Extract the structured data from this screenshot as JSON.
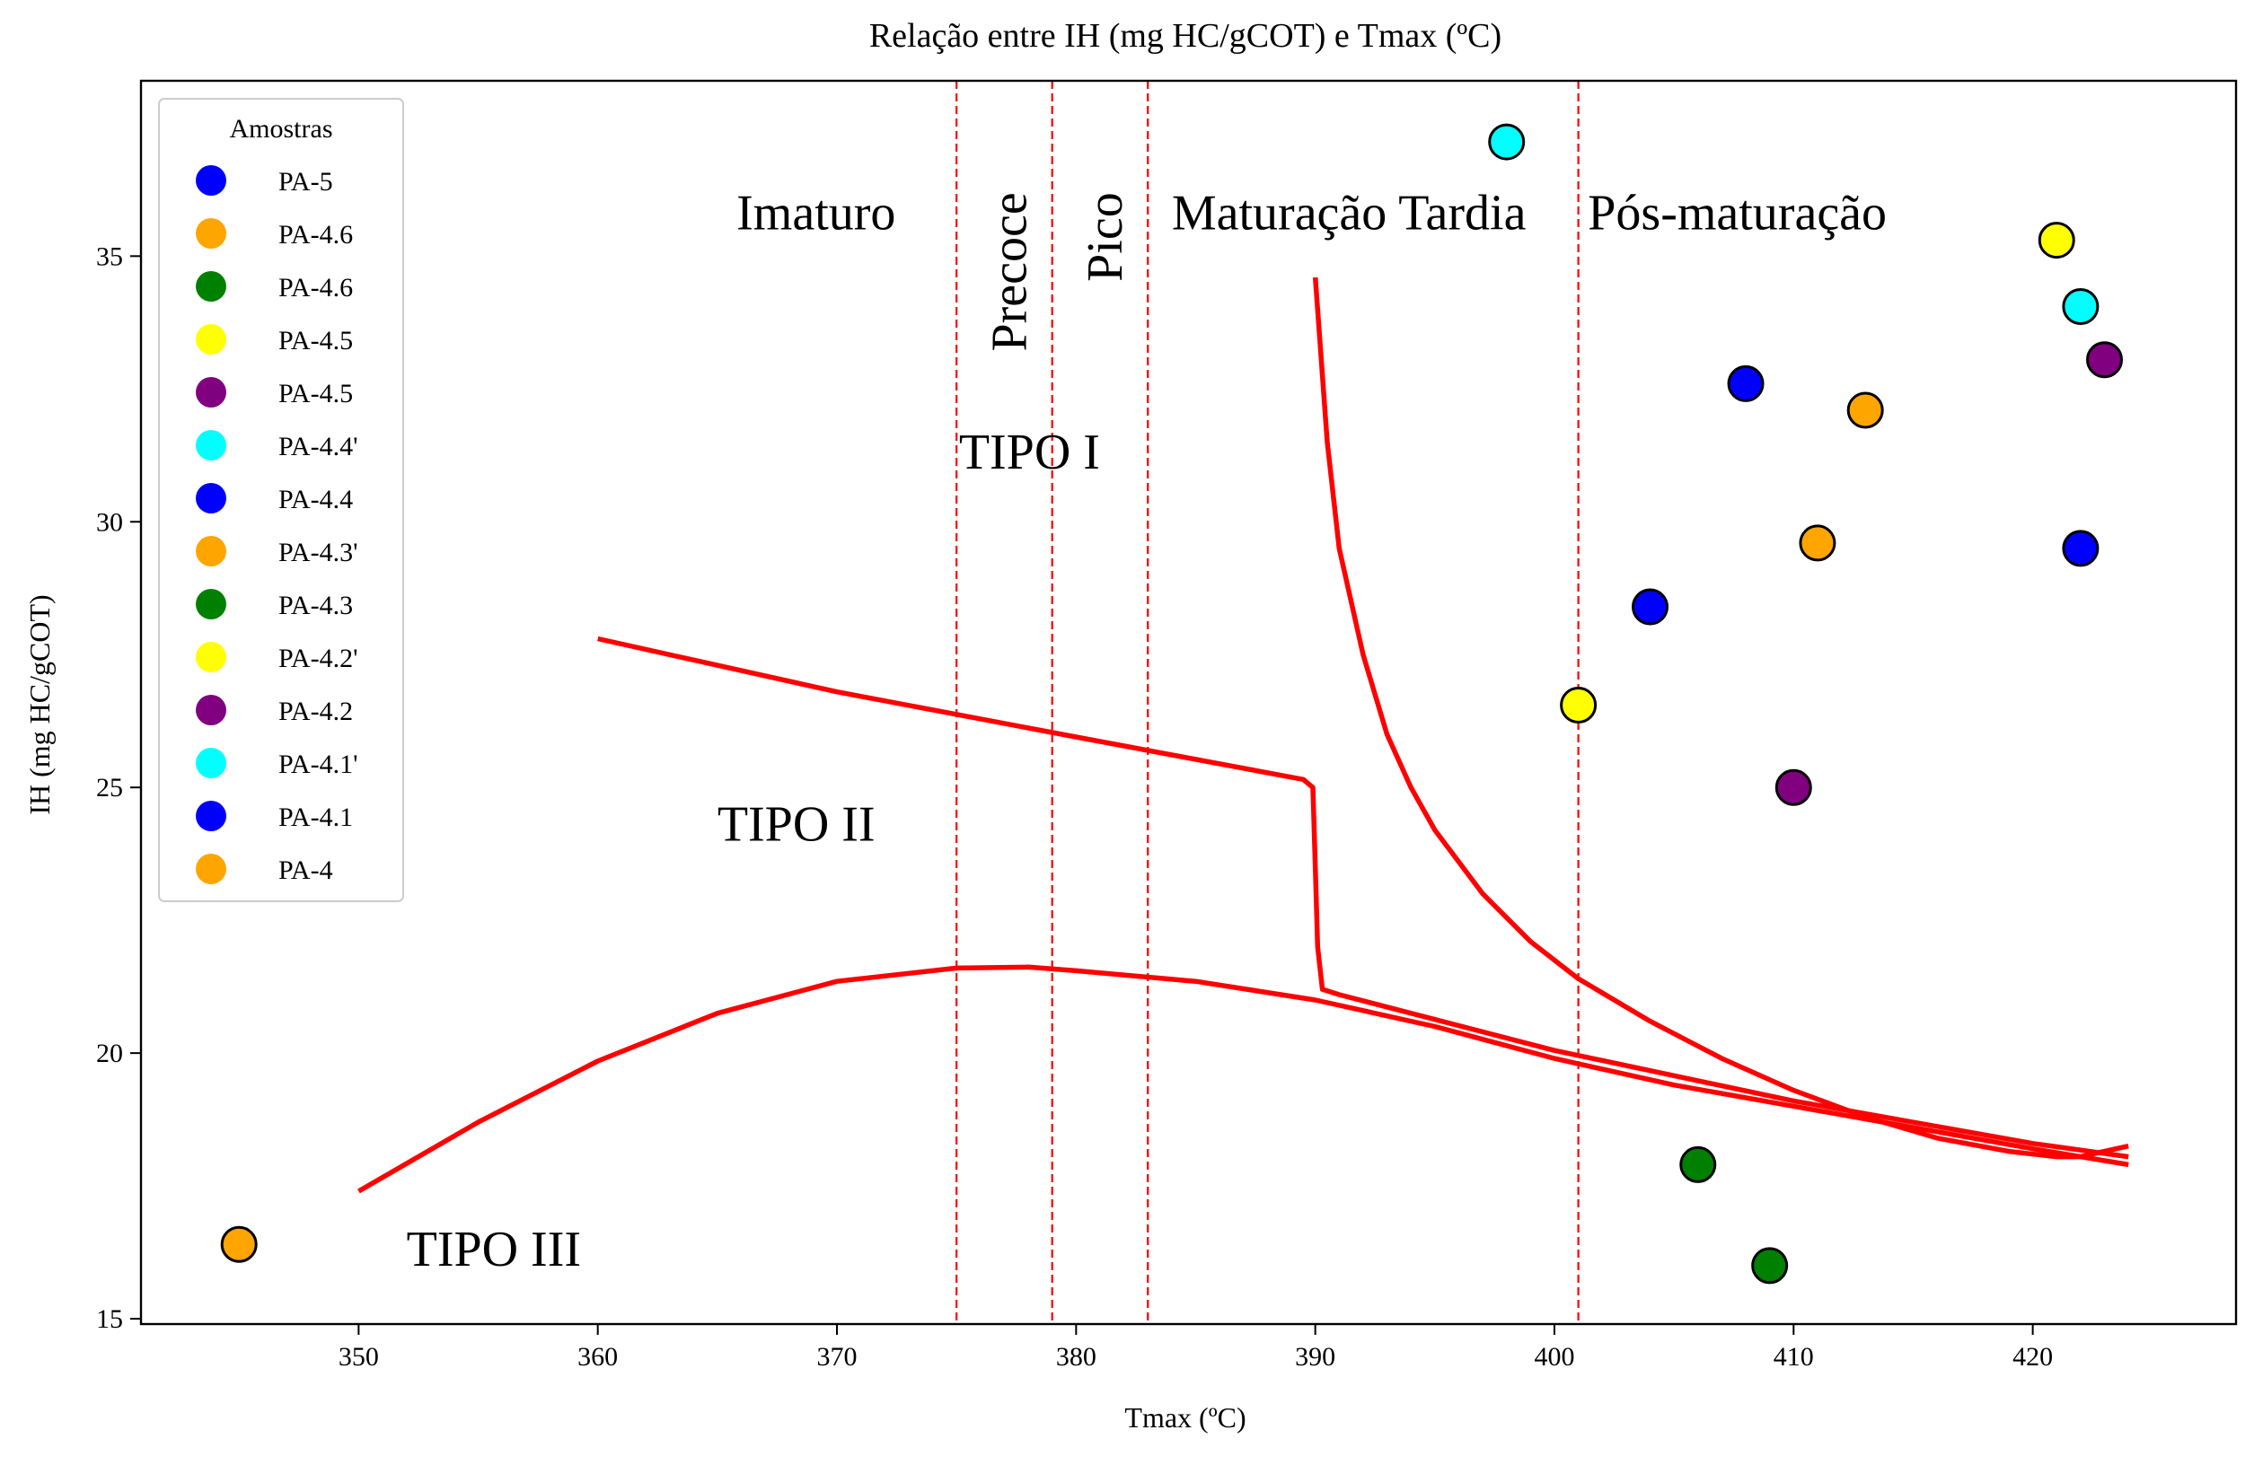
{
  "chart_data": {
    "type": "scatter",
    "title": "Relação entre IH (mg HC/gCOT) e Tmax (ºC)",
    "xlabel": "Tmax (ºC)",
    "ylabel": "IH (mg HC/gCOT)",
    "xlim": [
      340.9,
      428.5
    ],
    "ylim": [
      14.9,
      38.3
    ],
    "xticks": [
      350,
      360,
      370,
      380,
      390,
      400,
      410,
      420
    ],
    "yticks": [
      15,
      20,
      25,
      30,
      35
    ],
    "grid": false,
    "legend": {
      "title": "Amostras",
      "placement": "upper-left",
      "entries": [
        {
          "label": "PA-5",
          "color": "#0000ff"
        },
        {
          "label": "PA-4.6",
          "color": "#ffa500"
        },
        {
          "label": "PA-4.6",
          "color": "#008000"
        },
        {
          "label": "PA-4.5",
          "color": "#ffff00"
        },
        {
          "label": "PA-4.5",
          "color": "#800080"
        },
        {
          "label": "PA-4.4'",
          "color": "#00ffff"
        },
        {
          "label": "PA-4.4",
          "color": "#0000ff"
        },
        {
          "label": "PA-4.3'",
          "color": "#ffa500"
        },
        {
          "label": "PA-4.3",
          "color": "#008000"
        },
        {
          "label": "PA-4.2'",
          "color": "#ffff00"
        },
        {
          "label": "PA-4.2",
          "color": "#800080"
        },
        {
          "label": "PA-4.1'",
          "color": "#00ffff"
        },
        {
          "label": "PA-4.1",
          "color": "#0000ff"
        },
        {
          "label": "PA-4",
          "color": "#ffa500"
        }
      ]
    },
    "series": [
      {
        "name": "PA-5",
        "color": "#0000ff",
        "points": [
          [
            422,
            29.5
          ]
        ]
      },
      {
        "name": "PA-4.6",
        "color": "#ffa500",
        "points": [
          [
            413,
            32.1
          ]
        ]
      },
      {
        "name": "PA-4.6",
        "color": "#008000",
        "points": [
          [
            406,
            17.9
          ]
        ]
      },
      {
        "name": "PA-4.5",
        "color": "#ffff00",
        "points": [
          [
            421,
            35.3
          ]
        ]
      },
      {
        "name": "PA-4.5",
        "color": "#800080",
        "points": [
          [
            423,
            33.05
          ]
        ]
      },
      {
        "name": "PA-4.4'",
        "color": "#00ffff",
        "points": [
          [
            398,
            37.15
          ]
        ]
      },
      {
        "name": "PA-4.4",
        "color": "#0000ff",
        "points": [
          [
            404,
            28.4
          ]
        ]
      },
      {
        "name": "PA-4.3'",
        "color": "#ffa500",
        "points": [
          [
            411,
            29.6
          ]
        ]
      },
      {
        "name": "PA-4.3",
        "color": "#008000",
        "points": [
          [
            409,
            16.0
          ]
        ]
      },
      {
        "name": "PA-4.2'",
        "color": "#ffff00",
        "points": [
          [
            401,
            26.55
          ]
        ]
      },
      {
        "name": "PA-4.2",
        "color": "#800080",
        "points": [
          [
            410,
            25.0
          ]
        ]
      },
      {
        "name": "PA-4.1'",
        "color": "#00ffff",
        "points": [
          [
            422,
            34.05
          ]
        ]
      },
      {
        "name": "PA-4.1",
        "color": "#0000ff",
        "points": [
          [
            408,
            32.6
          ]
        ]
      },
      {
        "name": "PA-4",
        "color": "#ffa500",
        "points": [
          [
            345,
            16.4
          ]
        ]
      }
    ],
    "vlines": {
      "x": [
        375,
        379,
        383,
        401
      ],
      "color": "#ff0000",
      "style": "dashed"
    },
    "zone_labels": [
      {
        "text": "Imaturo",
        "x": 365.8,
        "y": 35.5,
        "rotation": 0
      },
      {
        "text": "Precoce",
        "x": 377.9,
        "y": 36.2,
        "rotation": -90
      },
      {
        "text": "Pico",
        "x": 381.9,
        "y": 36.2,
        "rotation": -90
      },
      {
        "text": "Maturação Tardia",
        "x": 384,
        "y": 35.5,
        "rotation": 0
      },
      {
        "text": "Pós-maturação",
        "x": 401.4,
        "y": 35.5,
        "rotation": 0
      }
    ],
    "type_labels": [
      {
        "text": "TIPO I",
        "x": 375.1,
        "y": 31.0
      },
      {
        "text": "TIPO II",
        "x": 365,
        "y": 24.0
      },
      {
        "text": "TIPO III",
        "x": 352,
        "y": 16.0
      }
    ],
    "kerogen_curves": {
      "color": "#ff0000",
      "tipo_I": [
        [
          390,
          34.6
        ],
        [
          390.5,
          31.5
        ],
        [
          391,
          29.5
        ],
        [
          392,
          27.5
        ],
        [
          393,
          26.0
        ],
        [
          394,
          25.0
        ],
        [
          395,
          24.2
        ],
        [
          397,
          23.0
        ],
        [
          399,
          22.1
        ],
        [
          401,
          21.4
        ],
        [
          404,
          20.6
        ],
        [
          407,
          19.9
        ],
        [
          410,
          19.3
        ],
        [
          413,
          18.8
        ],
        [
          416,
          18.4
        ],
        [
          419,
          18.15
        ],
        [
          421,
          18.05
        ],
        [
          422,
          18.05
        ],
        [
          423,
          18.15
        ],
        [
          424,
          18.25
        ]
      ],
      "tipo_II": [
        [
          360,
          27.8
        ],
        [
          370,
          26.8
        ],
        [
          380,
          25.95
        ],
        [
          389.5,
          25.15
        ],
        [
          389.9,
          25.0
        ],
        [
          390.0,
          23.5
        ],
        [
          390.1,
          22.0
        ],
        [
          390.3,
          21.2
        ],
        [
          391,
          21.1
        ],
        [
          400,
          20.05
        ],
        [
          410,
          19.1
        ],
        [
          420,
          18.3
        ],
        [
          424,
          18.05
        ]
      ],
      "tipo_III": [
        [
          350,
          17.4
        ],
        [
          355,
          18.7
        ],
        [
          360,
          19.85
        ],
        [
          365,
          20.75
        ],
        [
          370,
          21.35
        ],
        [
          375,
          21.6
        ],
        [
          378,
          21.62
        ],
        [
          380,
          21.55
        ],
        [
          385,
          21.35
        ],
        [
          390,
          21.0
        ],
        [
          395,
          20.5
        ],
        [
          400,
          19.9
        ],
        [
          405,
          19.4
        ],
        [
          410,
          19.0
        ],
        [
          415,
          18.6
        ],
        [
          420,
          18.2
        ],
        [
          424,
          17.9
        ]
      ]
    }
  }
}
